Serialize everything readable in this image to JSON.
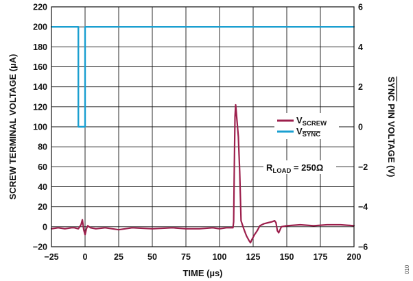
{
  "chart_data": {
    "type": "line",
    "xlabel": "TIME (µs)",
    "ylabel": "SCREW TERMINAL VOLTAGE (µA)",
    "y2label_pre": "SYNC",
    "y2label_post": " PIN VOLTAGE (V)",
    "xlim": [
      -25,
      200
    ],
    "ylim": [
      -20,
      220
    ],
    "y2lim": [
      -6,
      6
    ],
    "x_ticks": [
      "−25",
      "0",
      "25",
      "50",
      "75",
      "100",
      "125",
      "150",
      "175",
      "200"
    ],
    "y_ticks": [
      "−20",
      "0",
      "20",
      "40",
      "60",
      "80",
      "100",
      "120",
      "140",
      "160",
      "180",
      "200",
      "220"
    ],
    "y2_ticks": [
      "−6",
      "−4",
      "−2",
      "0",
      "2",
      "4",
      "6"
    ],
    "grid": true,
    "annotation": {
      "pre": "R",
      "sub": "LOAD",
      "post": " = 250Ω"
    },
    "corner_label": "010",
    "series": [
      {
        "name_main": "V",
        "name_sub": "SCREW",
        "color": "#9c1f4c",
        "axis": "left",
        "x": [
          -25,
          -20,
          -15,
          -10,
          -8,
          -5,
          -3,
          -2,
          -1,
          0,
          1,
          2,
          4,
          8,
          15,
          25,
          35,
          50,
          65,
          75,
          85,
          95,
          100,
          105,
          108,
          110,
          110.5,
          111,
          111.5,
          112,
          113,
          114,
          115,
          116,
          118,
          120,
          122,
          123,
          124,
          126,
          128,
          130,
          133,
          136,
          139,
          141,
          142,
          143,
          144,
          146,
          150,
          160,
          170,
          180,
          190,
          200
        ],
        "y": [
          -2,
          -1,
          -2,
          -1,
          -1,
          -2,
          2,
          7,
          -3,
          -8,
          -2,
          1,
          -1,
          -2,
          -1,
          -3,
          -1,
          -2,
          -1,
          -2,
          -2,
          -1,
          -2,
          -1,
          -1,
          -1,
          5,
          60,
          110,
          122,
          106,
          90,
          55,
          6,
          -2,
          -9,
          -14,
          -16,
          -13,
          -8,
          -4,
          1,
          3,
          4,
          5,
          6,
          4,
          -4,
          -6,
          0,
          1,
          2,
          1,
          2,
          2,
          1
        ]
      },
      {
        "name_main": "V",
        "name_sub": "SYNC",
        "color": "#1a9fd0",
        "axis": "right",
        "x": [
          -25,
          -5,
          -5,
          0,
          0,
          200
        ],
        "y": [
          5,
          5,
          0,
          0,
          5,
          5
        ]
      }
    ]
  }
}
